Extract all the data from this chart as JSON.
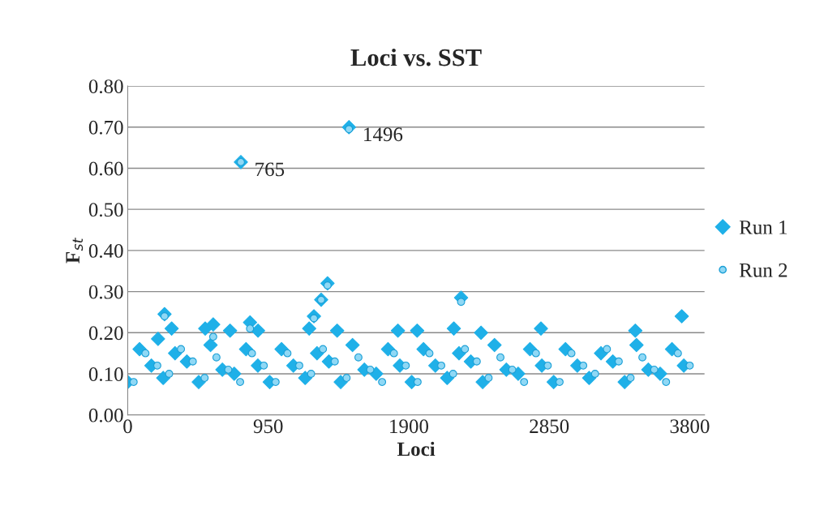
{
  "chart_data": {
    "type": "scatter",
    "title": "Loci vs. SST",
    "xlabel": "Loci",
    "ylabel": "F$_{st}$",
    "xlim": [
      0,
      3900
    ],
    "xticks": [
      0,
      950,
      1900,
      2850,
      3800
    ],
    "ylim": [
      0,
      0.8
    ],
    "yticks": [
      {
        "value": 0,
        "label": "0.00"
      },
      {
        "value": 0.1,
        "label": "0.10"
      },
      {
        "value": 0.2,
        "label": "0.20"
      },
      {
        "value": 0.3,
        "label": "0.30"
      },
      {
        "value": 0.4,
        "label": "0.40"
      },
      {
        "value": 0.5,
        "label": "0.50"
      },
      {
        "value": 0.6,
        "label": "0.60"
      },
      {
        "value": 0.7,
        "label": "0.70"
      },
      {
        "value": 0.8,
        "label": "0.80"
      }
    ],
    "grid": "y",
    "legend": "right",
    "annotations": [
      {
        "text": "765",
        "x": 765,
        "y": 0.615
      },
      {
        "text": "1496",
        "x": 1496,
        "y": 0.7
      }
    ],
    "series": [
      {
        "name": "Run 1",
        "color": "#1fb0e8",
        "marker": "diamond",
        "x": [
          0,
          80,
          160,
          240,
          320,
          400,
          480,
          560,
          640,
          720,
          800,
          880,
          960,
          1040,
          1120,
          1200,
          1280,
          1360,
          1440,
          1520,
          1600,
          1680,
          1760,
          1840,
          1920,
          2000,
          2080,
          2160,
          2240,
          2320,
          2400,
          2480,
          2560,
          2640,
          2720,
          2800,
          2880,
          2960,
          3040,
          3120,
          3200,
          3280,
          3360,
          3440,
          3520,
          3600,
          3680,
          3760,
          205,
          249,
          297,
          524,
          578,
          692,
          765,
          827,
          881,
          1227,
          1259,
          1308,
          1351,
          1416,
          1496,
          1827,
          1957,
          2205,
          2254,
          2389,
          2794,
          3432,
          3746
        ],
        "values": [
          0.08,
          0.16,
          0.12,
          0.09,
          0.15,
          0.13,
          0.08,
          0.17,
          0.11,
          0.1,
          0.16,
          0.12,
          0.08,
          0.16,
          0.12,
          0.09,
          0.15,
          0.13,
          0.08,
          0.17,
          0.11,
          0.1,
          0.16,
          0.12,
          0.08,
          0.16,
          0.12,
          0.09,
          0.15,
          0.13,
          0.08,
          0.17,
          0.11,
          0.1,
          0.16,
          0.12,
          0.08,
          0.16,
          0.12,
          0.09,
          0.15,
          0.13,
          0.08,
          0.17,
          0.11,
          0.1,
          0.16,
          0.12,
          0.185,
          0.245,
          0.21,
          0.21,
          0.22,
          0.205,
          0.615,
          0.225,
          0.205,
          0.21,
          0.24,
          0.28,
          0.32,
          0.205,
          0.7,
          0.205,
          0.205,
          0.21,
          0.285,
          0.2,
          0.21,
          0.205,
          0.24
        ]
      },
      {
        "name": "Run 2",
        "color": "#8fd8f5",
        "marker": "circle",
        "x": [
          40,
          120,
          200,
          280,
          360,
          440,
          520,
          600,
          680,
          760,
          840,
          920,
          1000,
          1080,
          1160,
          1240,
          1320,
          1400,
          1480,
          1560,
          1640,
          1720,
          1800,
          1880,
          1960,
          2040,
          2120,
          2200,
          2280,
          2360,
          2440,
          2520,
          2600,
          2680,
          2760,
          2840,
          2920,
          3000,
          3080,
          3160,
          3240,
          3320,
          3400,
          3480,
          3560,
          3640,
          3720,
          3800,
          249,
          578,
          765,
          827,
          1259,
          1308,
          1351,
          1496,
          2254
        ],
        "values": [
          0.08,
          0.15,
          0.12,
          0.1,
          0.16,
          0.13,
          0.09,
          0.14,
          0.11,
          0.08,
          0.15,
          0.12,
          0.08,
          0.15,
          0.12,
          0.1,
          0.16,
          0.13,
          0.09,
          0.14,
          0.11,
          0.08,
          0.15,
          0.12,
          0.08,
          0.15,
          0.12,
          0.1,
          0.16,
          0.13,
          0.09,
          0.14,
          0.11,
          0.08,
          0.15,
          0.12,
          0.08,
          0.15,
          0.12,
          0.1,
          0.16,
          0.13,
          0.09,
          0.14,
          0.11,
          0.08,
          0.15,
          0.12,
          0.24,
          0.19,
          0.615,
          0.21,
          0.235,
          0.28,
          0.315,
          0.695,
          0.275
        ]
      }
    ]
  }
}
